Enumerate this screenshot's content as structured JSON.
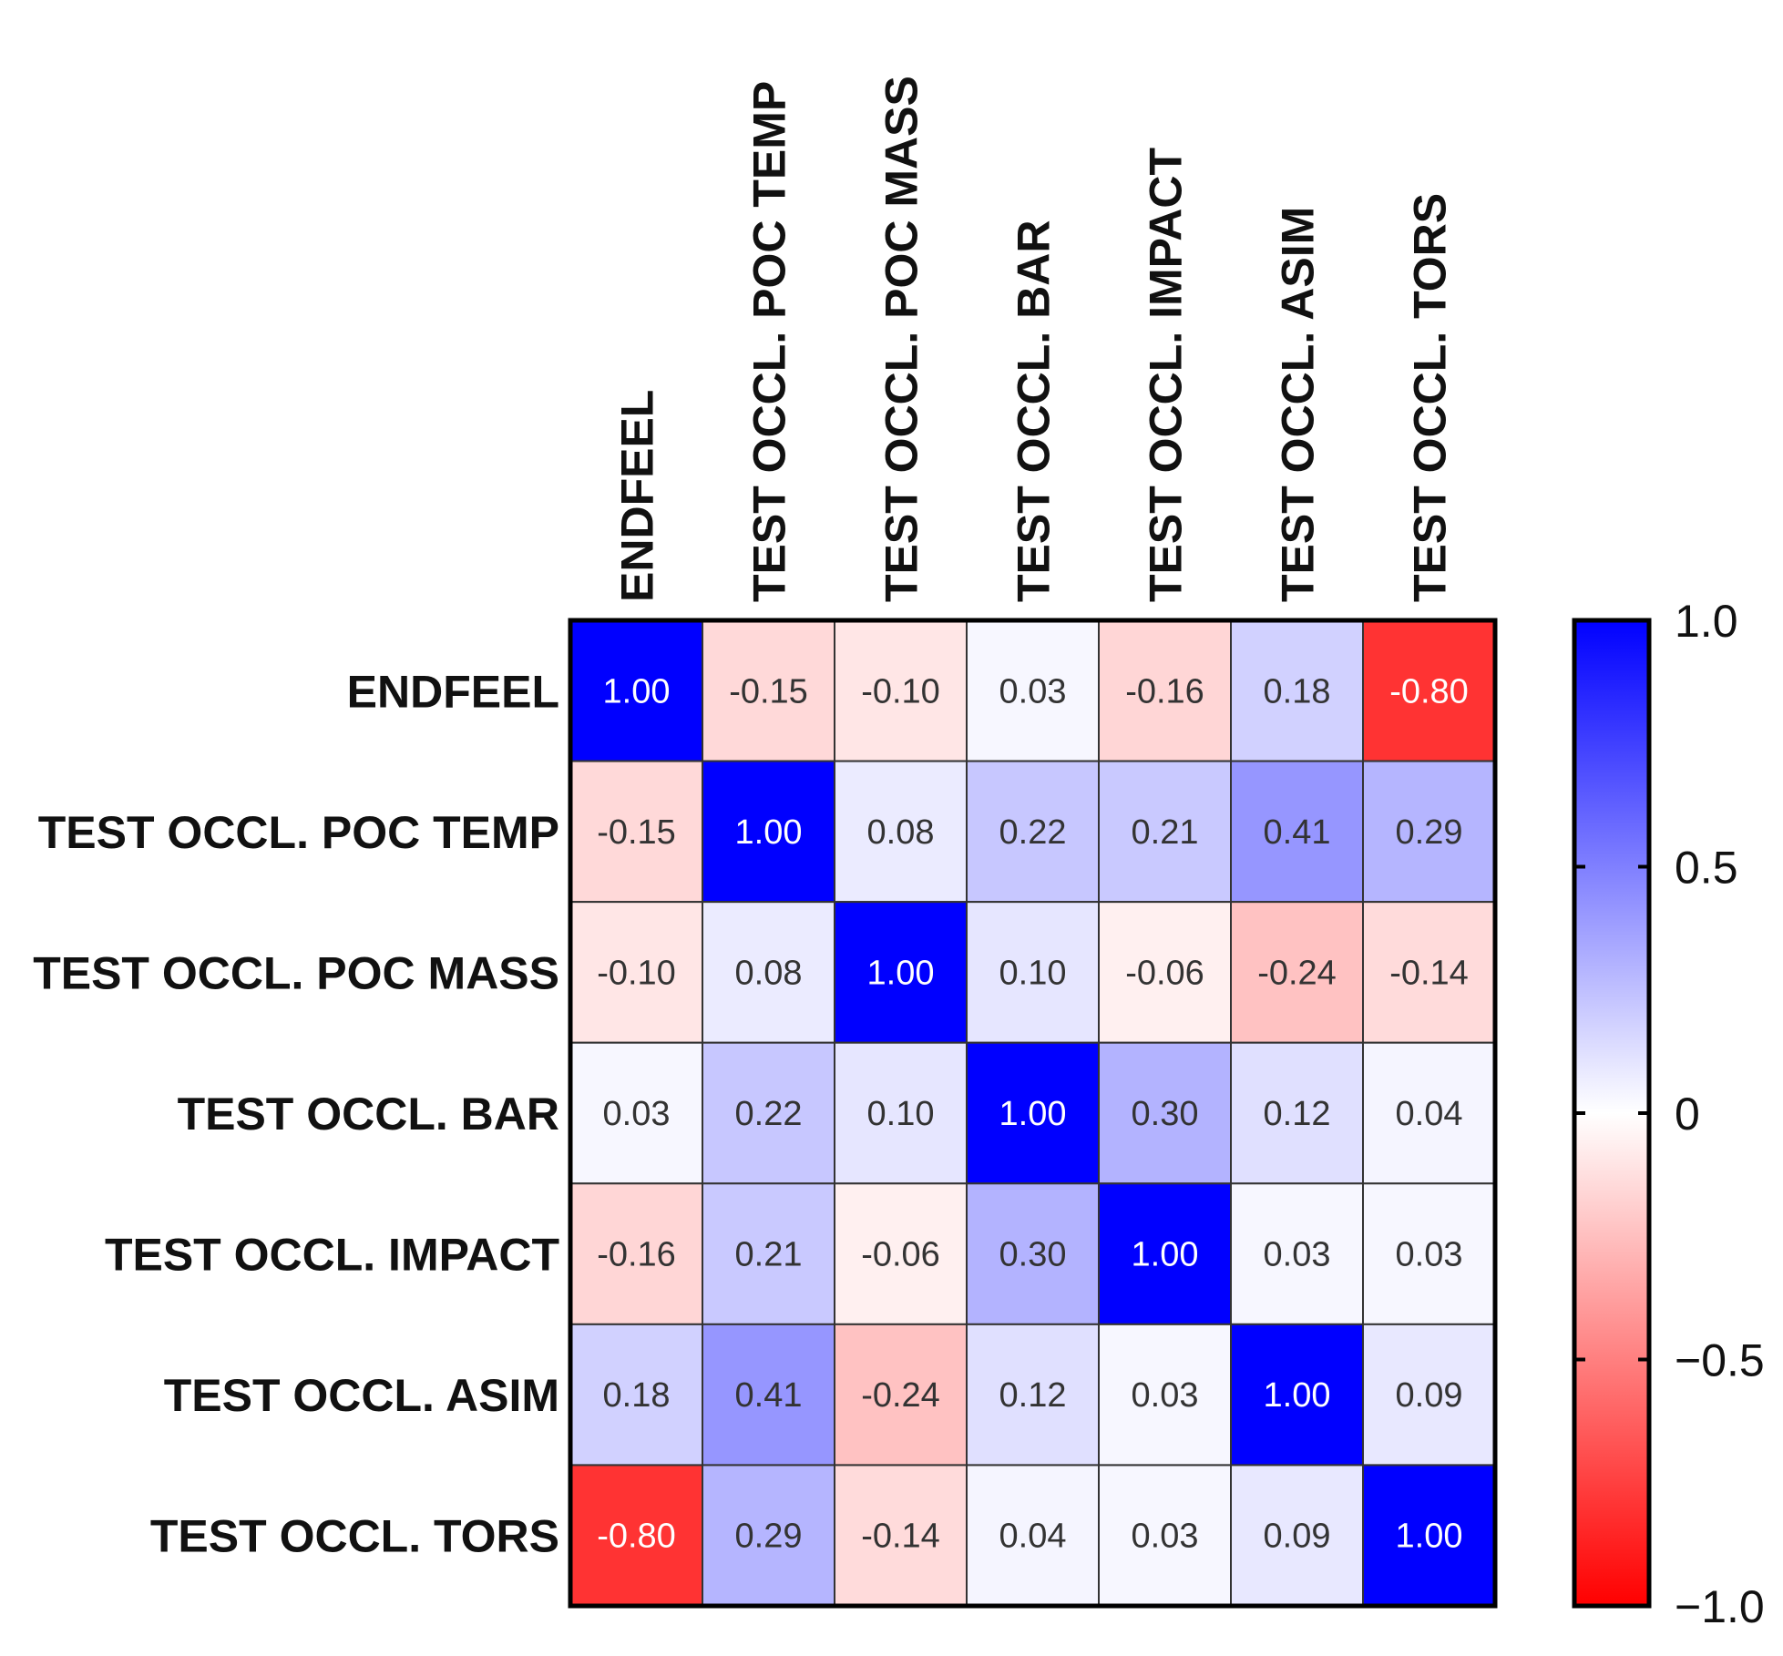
{
  "chart_data": {
    "type": "heatmap",
    "title": "",
    "row_labels": [
      "ENDFEEL",
      "TEST OCCL. POC TEMP",
      "TEST OCCL. POC MASS",
      "TEST OCCL. BAR",
      "TEST OCCL. IMPACT",
      "TEST OCCL. ASIM",
      "TEST OCCL. TORS"
    ],
    "column_labels": [
      "ENDFEEL",
      "TEST OCCL. POC TEMP",
      "TEST OCCL. POC MASS",
      "TEST OCCL. BAR",
      "TEST OCCL. IMPACT",
      "TEST OCCL. ASIM",
      "TEST OCCL. TORS"
    ],
    "values": [
      [
        1.0,
        -0.15,
        -0.1,
        0.03,
        -0.16,
        0.18,
        -0.8
      ],
      [
        -0.15,
        1.0,
        0.08,
        0.22,
        0.21,
        0.41,
        0.29
      ],
      [
        -0.1,
        0.08,
        1.0,
        0.1,
        -0.06,
        -0.24,
        -0.14
      ],
      [
        0.03,
        0.22,
        0.1,
        1.0,
        0.3,
        0.12,
        0.04
      ],
      [
        -0.16,
        0.21,
        -0.06,
        0.3,
        1.0,
        0.03,
        0.03
      ],
      [
        0.18,
        0.41,
        -0.24,
        0.12,
        0.03,
        1.0,
        0.09
      ],
      [
        -0.8,
        0.29,
        -0.14,
        0.04,
        0.03,
        0.09,
        1.0
      ]
    ],
    "cell_labels": [
      [
        "1.00",
        "-0.15",
        "-0.10",
        "0.03",
        "-0.16",
        "0.18",
        "-0.80"
      ],
      [
        "-0.15",
        "1.00",
        "0.08",
        "0.22",
        "0.21",
        "0.41",
        "0.29"
      ],
      [
        "-0.10",
        "0.08",
        "1.00",
        "0.10",
        "-0.06",
        "-0.24",
        "-0.14"
      ],
      [
        "0.03",
        "0.22",
        "0.10",
        "1.00",
        "0.30",
        "0.12",
        "0.04"
      ],
      [
        "-0.16",
        "0.21",
        "-0.06",
        "0.30",
        "1.00",
        "0.03",
        "0.03"
      ],
      [
        "0.18",
        "0.41",
        "-0.24",
        "0.12",
        "0.03",
        "1.00",
        "0.09"
      ],
      [
        "-0.80",
        "0.29",
        "-0.14",
        "0.04",
        "0.03",
        "0.09",
        "1.00"
      ]
    ],
    "colorbar": {
      "range": [
        -1.0,
        1.0
      ],
      "ticks": [
        1.0,
        0.5,
        0,
        -0.5,
        -1.0
      ],
      "tick_labels": [
        "1.0",
        "0.5",
        "0",
        "−0.5",
        "−1.0"
      ],
      "colors": {
        "positive": "#0000ff",
        "zero": "#ffffff",
        "negative": "#ff0000"
      },
      "placement": "right"
    },
    "grid": true,
    "legend": "none"
  }
}
